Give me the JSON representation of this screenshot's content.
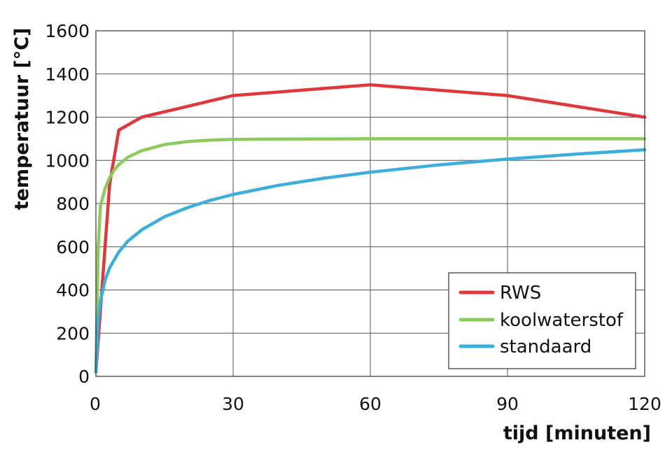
{
  "chart_data": {
    "type": "line",
    "xlabel": "tijd [minuten]",
    "ylabel": "temperatuur [°C]",
    "xlim": [
      0,
      120
    ],
    "ylim": [
      0,
      1600
    ],
    "xticks": [
      0,
      30,
      60,
      90,
      120
    ],
    "yticks": [
      0,
      200,
      400,
      600,
      800,
      1000,
      1200,
      1400,
      1600
    ],
    "grid": true,
    "legend_position": "bottom-right",
    "series": [
      {
        "name": "RWS",
        "color": "#e0383a",
        "x": [
          0,
          3,
          5,
          10,
          30,
          60,
          90,
          120
        ],
        "y": [
          20,
          890,
          1140,
          1200,
          1300,
          1350,
          1300,
          1200
        ]
      },
      {
        "name": "koolwaterstof",
        "color": "#8dca5c",
        "x": [
          0,
          0.5,
          1,
          2,
          3,
          4,
          5,
          7,
          10,
          15,
          20,
          25,
          30,
          40,
          60,
          90,
          120
        ],
        "y": [
          20,
          600,
          790,
          870,
          920,
          955,
          980,
          1015,
          1045,
          1073,
          1087,
          1094,
          1097,
          1099,
          1100,
          1100,
          1100
        ]
      },
      {
        "name": "standaard",
        "color": "#3aaedc",
        "x": [
          0,
          0.5,
          1,
          2,
          3,
          5,
          7,
          10,
          15,
          20,
          25,
          30,
          40,
          50,
          60,
          75,
          90,
          105,
          120
        ],
        "y": [
          20,
          261,
          349,
          445,
          502,
          576,
          626,
          678,
          739,
          781,
          815,
          842,
          885,
          918,
          945,
          979,
          1006,
          1029,
          1049
        ]
      }
    ]
  }
}
